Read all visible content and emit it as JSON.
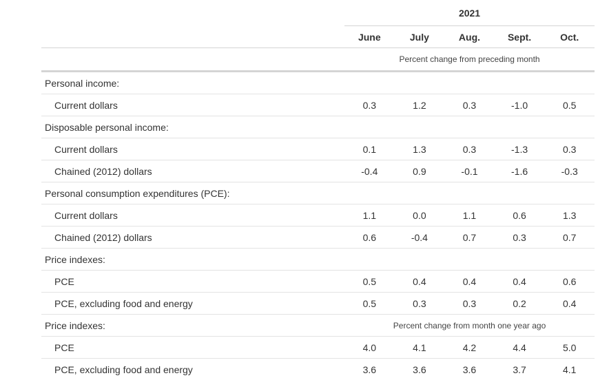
{
  "header": {
    "year": "2021",
    "months": [
      "June",
      "July",
      "Aug.",
      "Sept.",
      "Oct."
    ],
    "note_monthly": "Percent change from preceding month",
    "note_yearly": "Percent change from month one year ago"
  },
  "sections": {
    "personal_income": {
      "label": "Personal income:",
      "current_dollars": {
        "label": "Current dollars",
        "values": [
          "0.3",
          "1.2",
          "0.3",
          "-1.0",
          "0.5"
        ]
      }
    },
    "disposable_income": {
      "label": "Disposable personal income:",
      "current_dollars": {
        "label": "Current dollars",
        "values": [
          "0.1",
          "1.3",
          "0.3",
          "-1.3",
          "0.3"
        ]
      },
      "chained_dollars": {
        "label": "Chained (2012) dollars",
        "values": [
          "-0.4",
          "0.9",
          "-0.1",
          "-1.6",
          "-0.3"
        ]
      }
    },
    "pce": {
      "label": "Personal consumption expenditures (PCE):",
      "current_dollars": {
        "label": "Current dollars",
        "values": [
          "1.1",
          "0.0",
          "1.1",
          "0.6",
          "1.3"
        ]
      },
      "chained_dollars": {
        "label": "Chained (2012) dollars",
        "values": [
          "0.6",
          "-0.4",
          "0.7",
          "0.3",
          "0.7"
        ]
      }
    },
    "price_monthly": {
      "label": "Price indexes:",
      "pce": {
        "label": "PCE",
        "values": [
          "0.5",
          "0.4",
          "0.4",
          "0.4",
          "0.6"
        ]
      },
      "core": {
        "label": "PCE, excluding food and energy",
        "values": [
          "0.5",
          "0.3",
          "0.3",
          "0.2",
          "0.4"
        ]
      }
    },
    "price_yearly": {
      "label": "Price indexes:",
      "pce": {
        "label": "PCE",
        "values": [
          "4.0",
          "4.1",
          "4.2",
          "4.4",
          "5.0"
        ]
      },
      "core": {
        "label": "PCE, excluding food and energy",
        "values": [
          "3.6",
          "3.6",
          "3.6",
          "3.7",
          "4.1"
        ]
      }
    }
  }
}
